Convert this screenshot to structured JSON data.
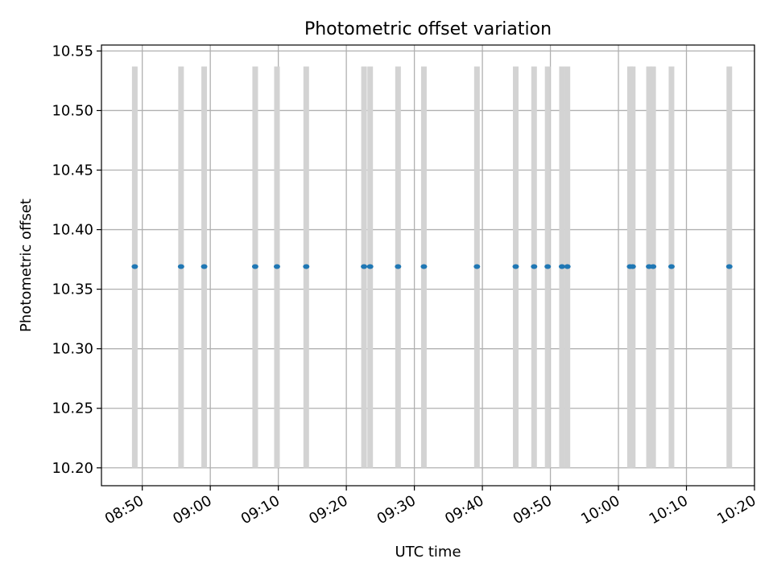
{
  "chart_data": {
    "type": "scatter",
    "title": "Photometric offset variation",
    "xlabel": "UTC time",
    "ylabel": "Photometric offset",
    "xlim": [
      "08:44",
      "10:20"
    ],
    "ylim": [
      10.185,
      10.555
    ],
    "x_ticks": [
      "08:50",
      "09:00",
      "09:10",
      "09:20",
      "09:30",
      "09:40",
      "09:50",
      "10:00",
      "10:10",
      "10:20"
    ],
    "y_ticks": [
      "10.20",
      "10.25",
      "10.30",
      "10.35",
      "10.40",
      "10.45",
      "10.50",
      "10.55"
    ],
    "grid": true,
    "point_color": "#1f77b4",
    "band_color": "#d3d3d3",
    "bands": {
      "ymin": 10.2,
      "ymax": 10.537,
      "x": [
        "08:48.9",
        "08:55.7",
        "08:59.1",
        "09:06.6",
        "09:09.8",
        "09:14.1",
        "09:22.6",
        "09:23.5",
        "09:27.6",
        "09:31.4",
        "09:39.2",
        "09:44.9",
        "09:47.6",
        "09:49.6",
        "09:51.7",
        "09:52.5",
        "10:01.7",
        "10:02.1",
        "10:04.5",
        "10:05.1",
        "10:07.8",
        "10:16.3"
      ]
    },
    "points": {
      "x": [
        "08:48.9",
        "08:55.7",
        "08:59.1",
        "09:06.6",
        "09:09.8",
        "09:14.1",
        "09:22.6",
        "09:23.5",
        "09:27.6",
        "09:31.4",
        "09:39.2",
        "09:44.9",
        "09:47.6",
        "09:49.6",
        "09:51.7",
        "09:52.5",
        "10:01.7",
        "10:02.1",
        "10:04.5",
        "10:05.1",
        "10:07.8",
        "10:16.3"
      ],
      "y": [
        10.369,
        10.369,
        10.369,
        10.369,
        10.369,
        10.369,
        10.369,
        10.369,
        10.369,
        10.369,
        10.369,
        10.369,
        10.369,
        10.369,
        10.369,
        10.369,
        10.369,
        10.369,
        10.369,
        10.369,
        10.369,
        10.369
      ]
    }
  }
}
